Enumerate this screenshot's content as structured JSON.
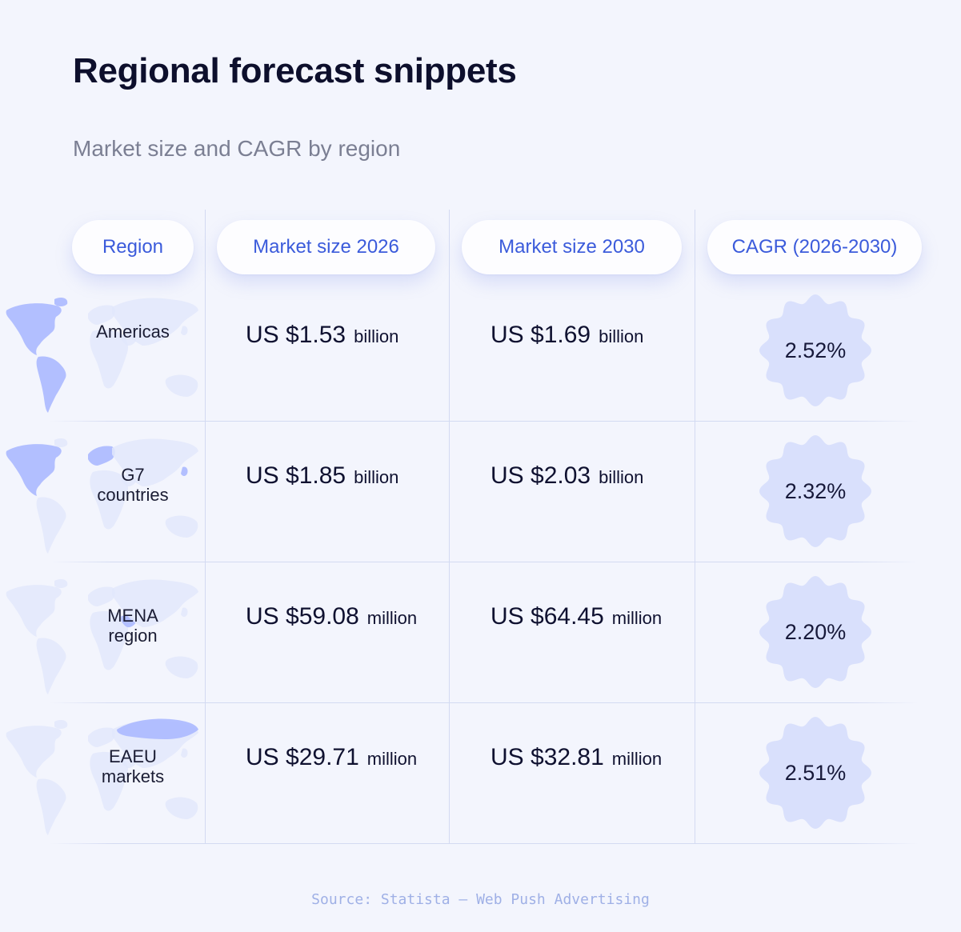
{
  "title": "Regional forecast snippets",
  "subtitle": "Market size and CAGR by region",
  "source": "Source: Statista — Web Push Advertising",
  "colors": {
    "accent": "#3b5bdb",
    "badge_fill": "#d9e0fc",
    "map_highlight": "#aebcff",
    "map_base": "#e2e8fb",
    "grid": "#d3daf2"
  },
  "chart_data": {
    "type": "table",
    "columns": [
      "Region",
      "Market size 2026",
      "Market size 2030",
      "CAGR (2026-2030)"
    ],
    "rows": [
      {
        "region": "Americas",
        "size_2026": "US $1.53",
        "unit_2026": "billion",
        "size_2030": "US $1.69",
        "unit_2030": "billion",
        "cagr": "2.52%",
        "map_icon": "world-map-americas-highlighted"
      },
      {
        "region": "G7 countries",
        "size_2026": "US $1.85",
        "unit_2026": "billion",
        "size_2030": "US $2.03",
        "unit_2030": "billion",
        "cagr": "2.32%",
        "map_icon": "world-map-g7-highlighted"
      },
      {
        "region": "MENA region",
        "size_2026": "US $59.08",
        "unit_2026": "million",
        "size_2030": "US $64.45",
        "unit_2030": "million",
        "cagr": "2.20%",
        "map_icon": "world-map-mena-highlighted"
      },
      {
        "region": "EAEU markets",
        "size_2026": "US $29.71",
        "unit_2026": "million",
        "size_2030": "US $32.81",
        "unit_2030": "million",
        "cagr": "2.51%",
        "map_icon": "world-map-eaeu-highlighted"
      }
    ]
  }
}
